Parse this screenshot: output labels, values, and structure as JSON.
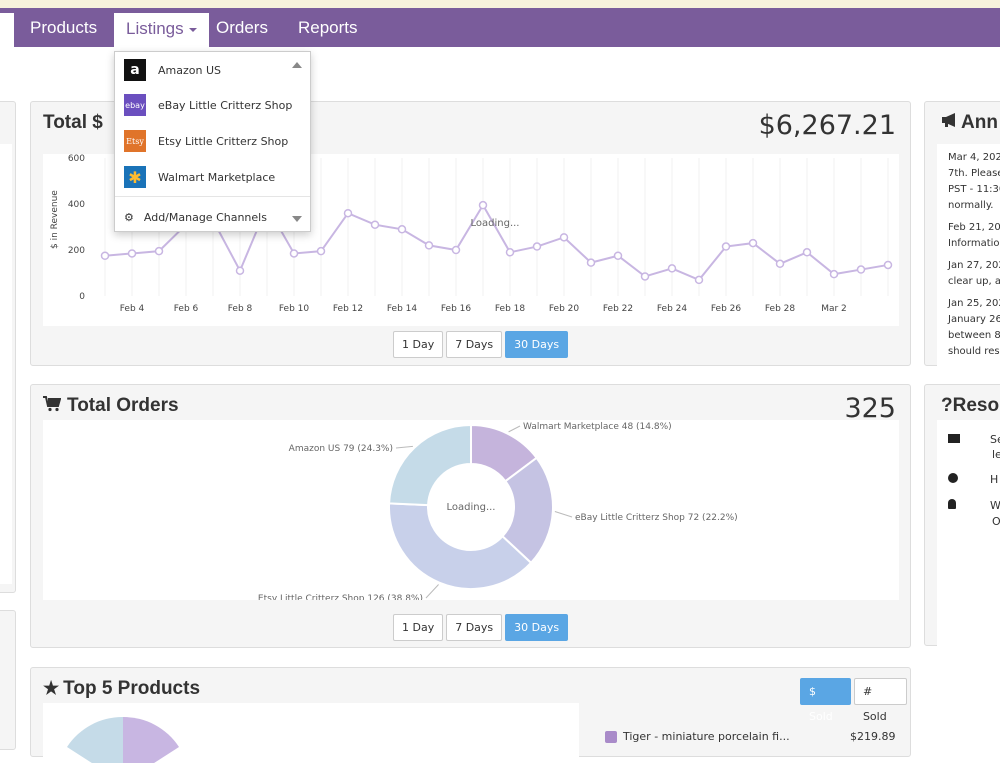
{
  "nav": {
    "items": [
      "Products",
      "Listings",
      "Orders",
      "Reports"
    ],
    "active": "Listings"
  },
  "listings_dropdown": {
    "channels": [
      {
        "label": "Amazon US",
        "logo": "a"
      },
      {
        "label": "eBay Little Critterz Shop",
        "logo": "ebay"
      },
      {
        "label": "Etsy Little Critterz Shop",
        "logo": "Etsy"
      },
      {
        "label": "Walmart Marketplace",
        "logo": "✱"
      }
    ],
    "manage_label": "Add/Manage Channels"
  },
  "revenue": {
    "title": "Total $",
    "value": "$6,267.21",
    "loading": "Loading...",
    "ylabel": "$ in Revenue",
    "buttons": [
      "1 Day",
      "7 Days",
      "30 Days"
    ],
    "active_button": "30 Days"
  },
  "orders": {
    "title": "Total Orders",
    "value": "325",
    "loading": "Loading...",
    "buttons": [
      "1 Day",
      "7 Days",
      "30 Days"
    ],
    "active_button": "30 Days"
  },
  "top_products": {
    "title": "Top 5 Products",
    "sold_dollars_label": "$ Sold",
    "sold_count_label": "# Sold",
    "first_item": {
      "name": "Tiger - miniature porcelain fi...",
      "value": "$219.89",
      "color": "#a98bc9"
    }
  },
  "announcements": {
    "title": "Ann",
    "lines": [
      "Mar 4, 202",
      "7th. Please",
      "PST - 11:30",
      "normally.",
      "Feb 21, 202",
      "Information",
      "Jan 27, 202",
      "clear up, ar",
      "Jan 25, 202",
      "January 26",
      "between 8:",
      "should resu"
    ]
  },
  "resources": {
    "title": "Reso",
    "rows": [
      {
        "icon": "video-icon",
        "text": "Se",
        "text2": "le"
      },
      {
        "icon": "help-icon",
        "text": "H"
      },
      {
        "icon": "user-icon",
        "text": "W",
        "text2": "O"
      }
    ]
  },
  "chart_data": [
    {
      "type": "line",
      "ylabel": "$ in Revenue",
      "ylim": [
        0,
        600
      ],
      "yticks": [
        0,
        200,
        400,
        600
      ],
      "xticks": [
        "Feb 4",
        "Feb 6",
        "Feb 8",
        "Feb 10",
        "Feb 12",
        "Feb 14",
        "Feb 16",
        "Feb 18",
        "Feb 20",
        "Feb 22",
        "Feb 24",
        "Feb 26",
        "Feb 28",
        "Mar 2"
      ],
      "x": [
        "Feb 3",
        "Feb 4",
        "Feb 5",
        "Feb 6",
        "Feb 7",
        "Feb 8",
        "Feb 9",
        "Feb 10",
        "Feb 11",
        "Feb 12",
        "Feb 13",
        "Feb 14",
        "Feb 15",
        "Feb 16",
        "Feb 17",
        "Feb 18",
        "Feb 19",
        "Feb 20",
        "Feb 21",
        "Feb 22",
        "Feb 23",
        "Feb 24",
        "Feb 25",
        "Feb 26",
        "Feb 27",
        "Feb 28",
        "Mar 1",
        "Mar 2",
        "Mar 3",
        "Mar 4"
      ],
      "values": [
        175,
        185,
        195,
        310,
        330,
        110,
        390,
        185,
        195,
        360,
        310,
        290,
        220,
        200,
        395,
        190,
        215,
        255,
        145,
        175,
        85,
        120,
        70,
        215,
        230,
        140,
        190,
        95,
        115,
        135
      ],
      "color": "#c8b6e2"
    },
    {
      "type": "pie",
      "labels": [
        "Walmart Marketplace",
        "eBay Little Critterz Shop",
        "Etsy Little Critterz Shop",
        "Amazon US"
      ],
      "values": [
        48,
        72,
        126,
        79
      ],
      "percents": [
        "14.8%",
        "22.2%",
        "38.8%",
        "24.3%"
      ],
      "colors": [
        "#c5b4dc",
        "#c5c3e3",
        "#c8d0ea",
        "#c5dbe8"
      ],
      "slice_labels": [
        "Walmart Marketplace 48 (14.8%)",
        "eBay Little Critterz Shop 72 (22.2%)",
        "Etsy Little Critterz Shop 126 (38.8%)",
        "Amazon US 79 (24.3%)"
      ]
    }
  ]
}
